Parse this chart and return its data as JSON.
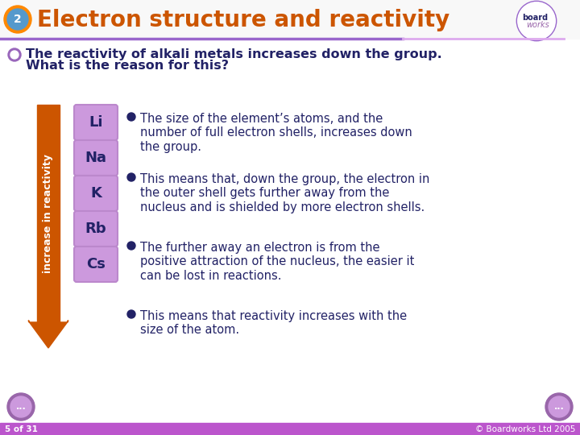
{
  "title": "Electron structure and reactivity",
  "title_color": "#CC5500",
  "title_fontsize": 20,
  "bg_color": "#FFFFFF",
  "header_line_color": "#9966CC",
  "footer_bar_color": "#BB55CC",
  "footer_text": "5 of 31",
  "footer_copyright": "© Boardworks Ltd 2005",
  "intro_text1": "The reactivity of alkali metals increases down the group.",
  "intro_text2": "What is the reason for this?",
  "intro_bullet_color": "#9966BB",
  "elements": [
    "Li",
    "Na",
    "K",
    "Rb",
    "Cs"
  ],
  "element_box_color": "#CC99DD",
  "element_box_edge": "#BB88CC",
  "element_text_color": "#222266",
  "arrow_label": "increase in reactivity",
  "arrow_color": "#CC5500",
  "bullets": [
    "The size of the element’s atoms, and the\nnumber of full electron shells, increases down\nthe group.",
    "This means that, down the group, the electron in\nthe outer shell gets further away from the\nnucleus and is shielded by more electron shells.",
    "The further away an electron is from the\npositive attraction of the nucleus, the easier it\ncan be lost in reactions.",
    "This means that reactivity increases with the\nsize of the atom."
  ],
  "bullet_color": "#222266",
  "bullet_fontsize": 10.5,
  "bullet_dot_color": "#222266",
  "header_bg": "#F8F8F8",
  "num_circle_outer": "#FF8800",
  "num_circle_inner": "#5599CC",
  "logo_border": "#9966CC",
  "logo_text1": "board",
  "logo_text2": "works",
  "nav_outer": "#9966AA",
  "nav_inner": "#CC99DD"
}
